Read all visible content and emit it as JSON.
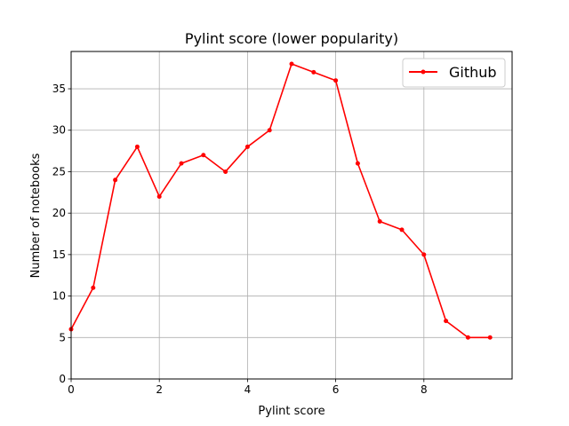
{
  "chart_data": {
    "type": "line",
    "title": "Pylint score (lower popularity)",
    "xlabel": "Pylint score",
    "ylabel": "Number of notebooks",
    "xlim": [
      0,
      10
    ],
    "ylim": [
      0,
      39.5
    ],
    "xticks": [
      0,
      2,
      4,
      6,
      8
    ],
    "yticks": [
      0,
      5,
      10,
      15,
      20,
      25,
      30,
      35
    ],
    "grid": true,
    "legend_position": "top-right",
    "series": [
      {
        "name": "Github",
        "color": "#ff0000",
        "x": [
          0,
          0.5,
          1,
          1.5,
          2,
          2.5,
          3,
          3.5,
          4,
          4.5,
          5,
          5.5,
          6,
          6.5,
          7,
          7.5,
          8,
          8.5,
          9,
          9.5
        ],
        "y": [
          6,
          11,
          24,
          28,
          22,
          26,
          27,
          25,
          28,
          30,
          38,
          37,
          36,
          26,
          19,
          18,
          15,
          7,
          5,
          5
        ]
      }
    ]
  }
}
